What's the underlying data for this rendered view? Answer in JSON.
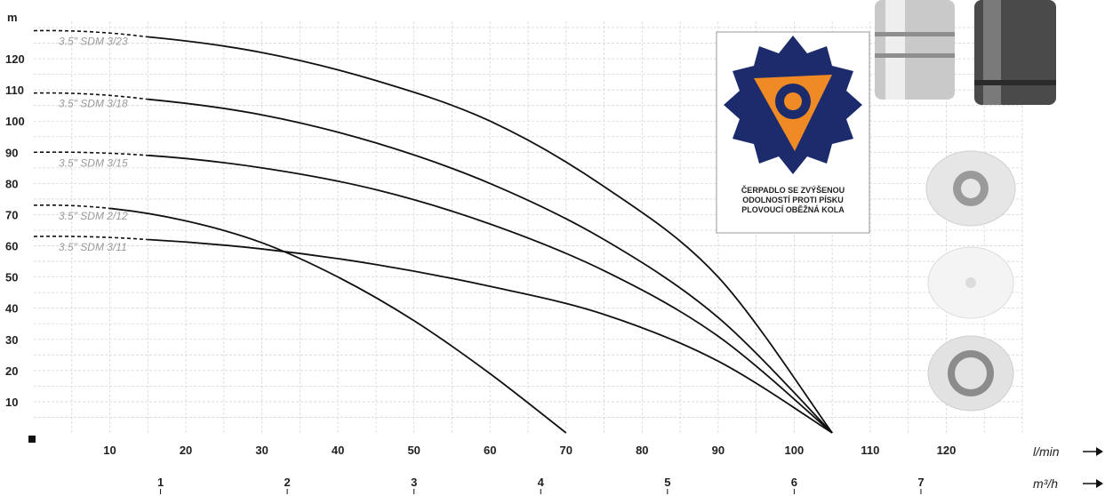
{
  "chart_data": {
    "type": "line",
    "title": "",
    "y_unit": "m",
    "x_unit": "l/min",
    "x2_unit": "m³/h",
    "xlim": [
      0,
      130
    ],
    "ylim": [
      0,
      132
    ],
    "x_ticks": [
      10,
      20,
      30,
      40,
      50,
      60,
      70,
      80,
      90,
      100,
      110,
      120
    ],
    "y_ticks": [
      10,
      20,
      30,
      40,
      50,
      60,
      70,
      80,
      90,
      100,
      110,
      120
    ],
    "x2_ticks": [
      1,
      2,
      3,
      4,
      5,
      6,
      7
    ],
    "grid": true,
    "series": [
      {
        "name": "3.5\" SDM 3/23",
        "x": [
          0,
          15,
          30,
          45,
          60,
          75,
          90,
          105
        ],
        "y": [
          129,
          127,
          122,
          113,
          100,
          79,
          50,
          0
        ],
        "color": "#111111"
      },
      {
        "name": "3.5\" SDM 3/18",
        "x": [
          0,
          15,
          30,
          45,
          60,
          75,
          90,
          105
        ],
        "y": [
          109,
          107,
          102,
          93,
          80,
          62,
          37,
          0
        ],
        "color": "#111111"
      },
      {
        "name": "3.5\" SDM 3/15",
        "x": [
          0,
          15,
          30,
          45,
          60,
          75,
          90,
          105
        ],
        "y": [
          90,
          89,
          85,
          78,
          67,
          52,
          31,
          0
        ],
        "color": "#111111"
      },
      {
        "name": "3.5\" SDM 2/12",
        "x": [
          0,
          10,
          20,
          30,
          40,
          50,
          60,
          70
        ],
        "y": [
          73,
          72,
          68,
          61,
          50,
          36,
          19,
          0
        ],
        "color": "#111111"
      },
      {
        "name": "3.5\" SDM 3/11",
        "x": [
          0,
          15,
          30,
          45,
          60,
          75,
          90,
          105
        ],
        "y": [
          63,
          62,
          59,
          54,
          47,
          38,
          23,
          0
        ],
        "color": "#111111"
      }
    ]
  },
  "badge": {
    "line1": "ČERPADLO SE ZVÝŠENOU",
    "line2": "ODOLNOSTÍ PROTI PÍSKU",
    "line3": "PLOVOUCÍ OBĚŽNÁ KOLA"
  },
  "colors": {
    "impeller_orange": "#f08a24",
    "impeller_blue": "#1c2b6b",
    "grid": "#d6d6d6"
  }
}
